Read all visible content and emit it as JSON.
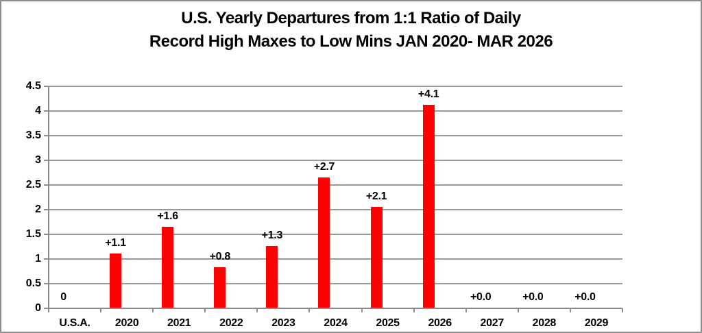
{
  "window": {
    "background": "#ffffff",
    "border_color": "#8c8c8c"
  },
  "chart_data": {
    "type": "bar",
    "title_line1": "U.S. Yearly Departures from 1:1 Ratio of Daily",
    "title_line2": "Record High Maxes to Low Mins JAN 2020- MAR 2026",
    "categories": [
      "U.S.A.",
      "2020",
      "2021",
      "2022",
      "2023",
      "2024",
      "2025",
      "2026",
      "2027",
      "2028",
      "2029"
    ],
    "values": [
      0,
      1.11,
      1.65,
      0.84,
      1.27,
      2.65,
      2.06,
      4.13,
      0,
      0,
      0
    ],
    "bar_labels": [
      "0",
      "+1.1",
      "+1.6",
      "+0.8",
      "+1.3",
      "+2.7",
      "+2.1",
      "+4.1",
      "+0.0",
      "+0.0",
      "+0.0"
    ],
    "y_ticks": [
      0,
      0.5,
      1,
      1.5,
      2,
      2.5,
      3,
      3.5,
      4,
      4.5
    ],
    "y_tick_labels": [
      "0",
      "0.5",
      "1",
      "1.5",
      "2",
      "2.5",
      "3",
      "3.5",
      "4",
      "4.5"
    ],
    "ylim": [
      0,
      4.5
    ],
    "xlabel": "",
    "ylabel": "",
    "legend": "none",
    "grid": "horizontal",
    "bar_color": "#ff0000",
    "gridline_color": "#9a9a9a",
    "axis_color": "#8c8c8c",
    "text_color": "#000000"
  }
}
